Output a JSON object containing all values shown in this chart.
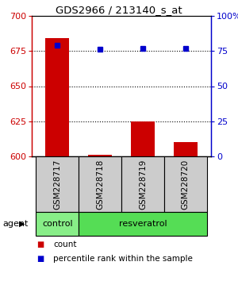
{
  "title": "GDS2966 / 213140_s_at",
  "samples": [
    "GSM228717",
    "GSM228718",
    "GSM228719",
    "GSM228720"
  ],
  "counts": [
    684,
    601,
    625,
    610
  ],
  "percentiles": [
    79,
    76,
    77,
    77
  ],
  "ylim_left": [
    600,
    700
  ],
  "ylim_right": [
    0,
    100
  ],
  "yticks_left": [
    600,
    625,
    650,
    675,
    700
  ],
  "yticks_right": [
    0,
    25,
    50,
    75,
    100
  ],
  "ytick_labels_right": [
    "0",
    "25",
    "50",
    "75",
    "100%"
  ],
  "bar_color": "#cc0000",
  "dot_color": "#0000cc",
  "sample_box_color": "#cccccc",
  "left_axis_color": "#cc0000",
  "right_axis_color": "#0000cc",
  "group_ranges": [
    [
      0,
      1
    ],
    [
      1,
      4
    ]
  ],
  "group_labels": [
    "control",
    "resveratrol"
  ],
  "group_colors": [
    "#88ee88",
    "#55dd55"
  ]
}
